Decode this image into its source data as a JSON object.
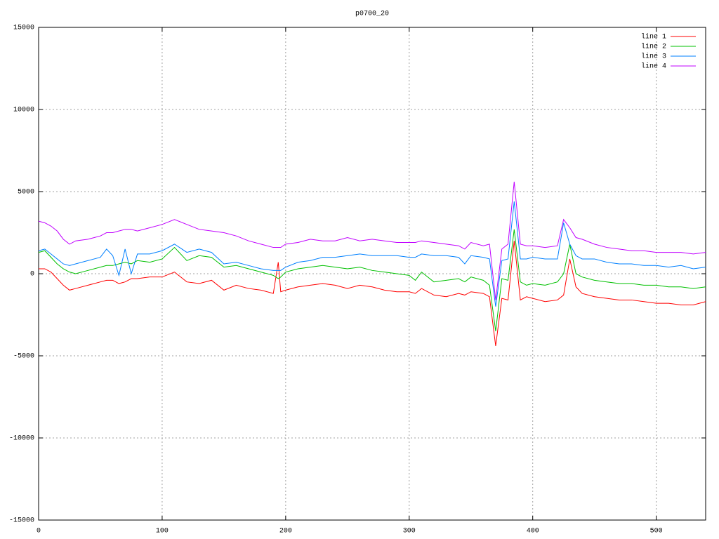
{
  "chart_data": {
    "type": "line",
    "title": "p0700_20",
    "x": [
      0,
      5,
      10,
      15,
      20,
      25,
      30,
      40,
      50,
      55,
      60,
      65,
      70,
      75,
      80,
      90,
      100,
      110,
      120,
      130,
      140,
      150,
      160,
      170,
      180,
      190,
      194,
      196,
      200,
      210,
      220,
      230,
      240,
      250,
      260,
      270,
      280,
      290,
      300,
      305,
      310,
      320,
      330,
      340,
      345,
      350,
      360,
      365,
      370,
      375,
      380,
      385,
      390,
      395,
      400,
      410,
      420,
      425,
      430,
      435,
      440,
      450,
      460,
      470,
      480,
      490,
      500,
      510,
      520,
      530,
      540
    ],
    "series": [
      {
        "name": "line 1",
        "color": "#ff0000",
        "values": [
          300,
          300,
          100,
          -300,
          -700,
          -1000,
          -900,
          -700,
          -500,
          -400,
          -400,
          -600,
          -500,
          -300,
          -300,
          -200,
          -200,
          100,
          -500,
          -600,
          -400,
          -1000,
          -700,
          -900,
          -1000,
          -1200,
          700,
          -1100,
          -1000,
          -800,
          -700,
          -600,
          -700,
          -900,
          -700,
          -800,
          -1000,
          -1100,
          -1100,
          -1200,
          -900,
          -1300,
          -1400,
          -1200,
          -1300,
          -1100,
          -1200,
          -1400,
          -4400,
          -1500,
          -1600,
          2000,
          -1600,
          -1400,
          -1500,
          -1700,
          -1600,
          -1300,
          900,
          -800,
          -1200,
          -1400,
          -1500,
          -1600,
          -1600,
          -1700,
          -1800,
          -1800,
          -1900,
          -1900,
          -1700
        ]
      },
      {
        "name": "line 2",
        "color": "#00c000",
        "values": [
          1300,
          1400,
          1000,
          600,
          300,
          100,
          0,
          200,
          400,
          500,
          500,
          600,
          700,
          600,
          800,
          700,
          900,
          1600,
          800,
          1100,
          1000,
          400,
          500,
          300,
          100,
          -100,
          -300,
          -200,
          100,
          300,
          400,
          500,
          400,
          300,
          400,
          200,
          100,
          0,
          -100,
          -400,
          100,
          -500,
          -400,
          -300,
          -500,
          -200,
          -400,
          -700,
          -3500,
          -300,
          -400,
          2700,
          -500,
          -700,
          -600,
          -700,
          -500,
          0,
          1800,
          0,
          -200,
          -400,
          -500,
          -600,
          -600,
          -700,
          -700,
          -800,
          -800,
          -900,
          -800
        ]
      },
      {
        "name": "line 3",
        "color": "#0080ff",
        "values": [
          1400,
          1500,
          1200,
          900,
          600,
          500,
          600,
          800,
          1000,
          1500,
          1100,
          -100,
          1500,
          0,
          1200,
          1200,
          1400,
          1800,
          1300,
          1500,
          1300,
          600,
          700,
          500,
          300,
          200,
          200,
          200,
          400,
          700,
          800,
          1000,
          1000,
          1100,
          1200,
          1100,
          1100,
          1100,
          1000,
          1000,
          1200,
          1100,
          1100,
          1000,
          600,
          1100,
          1000,
          900,
          -2000,
          800,
          900,
          4400,
          900,
          900,
          1000,
          900,
          900,
          3100,
          1800,
          1100,
          900,
          900,
          700,
          600,
          600,
          500,
          500,
          400,
          500,
          300,
          400
        ]
      },
      {
        "name": "line 4",
        "color": "#c000ff",
        "values": [
          3200,
          3100,
          2900,
          2600,
          2100,
          1800,
          2000,
          2100,
          2300,
          2500,
          2500,
          2600,
          2700,
          2700,
          2600,
          2800,
          3000,
          3300,
          3000,
          2700,
          2600,
          2500,
          2300,
          2000,
          1800,
          1600,
          1600,
          1600,
          1800,
          1900,
          2100,
          2000,
          2000,
          2200,
          2000,
          2100,
          2000,
          1900,
          1900,
          1900,
          2000,
          1900,
          1800,
          1700,
          1500,
          1900,
          1700,
          1800,
          -1600,
          1500,
          1800,
          5600,
          1800,
          1700,
          1700,
          1600,
          1700,
          3300,
          2800,
          2200,
          2100,
          1800,
          1600,
          1500,
          1400,
          1400,
          1300,
          1300,
          1300,
          1200,
          1300
        ]
      }
    ],
    "xlim": [
      0,
      540
    ],
    "xticks": [
      0,
      100,
      200,
      300,
      400,
      500
    ],
    "ylim": [
      -15000,
      15000
    ],
    "yticks": [
      -15000,
      -10000,
      -5000,
      0,
      5000,
      10000,
      15000
    ],
    "grid": true,
    "legend": "upper-right"
  }
}
